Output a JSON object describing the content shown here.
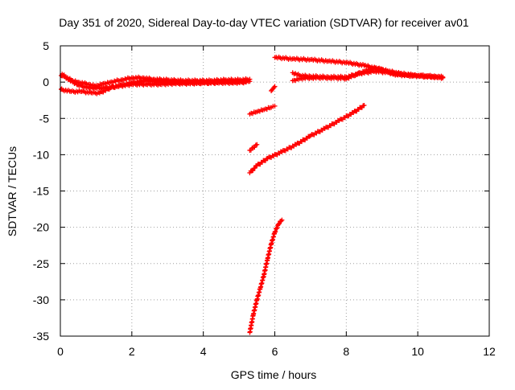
{
  "chart_data": {
    "type": "scatter",
    "title": "Day 351 of 2020, Sidereal Day-to-day VTEC variation (SDTVAR) for receiver av01",
    "xlabel": "GPS time / hours",
    "ylabel": "SDTVAR / TECUs",
    "xlim": [
      0,
      12
    ],
    "ylim": [
      -35,
      5
    ],
    "xticks": [
      0,
      2,
      4,
      6,
      8,
      10,
      12
    ],
    "yticks": [
      5,
      0,
      -5,
      -10,
      -15,
      -20,
      -25,
      -30,
      -35
    ],
    "grid": true,
    "legend": "none",
    "marker": "plus",
    "color": "#ff0000",
    "segments": [
      {
        "points": [
          [
            0.0,
            0.9
          ],
          [
            0.1,
            0.8
          ],
          [
            0.3,
            0.3
          ],
          [
            0.5,
            0.0
          ],
          [
            0.8,
            -0.3
          ],
          [
            1.0,
            -0.5
          ],
          [
            1.2,
            -0.2
          ],
          [
            1.4,
            0.0
          ],
          [
            1.7,
            0.3
          ],
          [
            2.0,
            0.6
          ],
          [
            2.3,
            0.6
          ],
          [
            2.6,
            0.4
          ],
          [
            3.0,
            0.3
          ],
          [
            3.4,
            0.2
          ],
          [
            3.8,
            0.2
          ],
          [
            4.2,
            0.2
          ],
          [
            4.6,
            0.3
          ],
          [
            5.0,
            0.3
          ],
          [
            5.3,
            0.4
          ]
        ]
      },
      {
        "points": [
          [
            0.0,
            -1.0
          ],
          [
            0.3,
            -1.3
          ],
          [
            0.6,
            -1.3
          ],
          [
            0.9,
            -1.5
          ],
          [
            1.1,
            -1.5
          ],
          [
            1.4,
            -0.8
          ],
          [
            1.7,
            -0.4
          ],
          [
            2.0,
            -0.1
          ],
          [
            2.4,
            0.2
          ],
          [
            2.8,
            0.0
          ],
          [
            3.2,
            -0.1
          ],
          [
            3.6,
            -0.1
          ],
          [
            4.0,
            -0.1
          ],
          [
            4.5,
            0.0
          ],
          [
            5.0,
            0.0
          ],
          [
            5.3,
            0.1
          ]
        ]
      },
      {
        "points": [
          [
            0.05,
            1.1
          ],
          [
            0.25,
            0.3
          ],
          [
            0.5,
            -0.4
          ],
          [
            0.8,
            -0.8
          ],
          [
            1.2,
            -0.8
          ],
          [
            1.6,
            -0.6
          ],
          [
            2.0,
            -0.3
          ],
          [
            2.4,
            -0.3
          ],
          [
            2.8,
            -0.3
          ],
          [
            3.2,
            -0.2
          ],
          [
            3.6,
            -0.2
          ],
          [
            4.0,
            -0.1
          ],
          [
            4.4,
            -0.1
          ],
          [
            4.8,
            -0.1
          ],
          [
            5.2,
            0.0
          ]
        ]
      },
      {
        "points": [
          [
            5.3,
            -4.4
          ],
          [
            5.5,
            -4.1
          ],
          [
            5.7,
            -3.8
          ],
          [
            5.9,
            -3.5
          ],
          [
            6.0,
            -3.3
          ]
        ]
      },
      {
        "points": [
          [
            5.3,
            -9.4
          ],
          [
            5.4,
            -9.0
          ],
          [
            5.5,
            -8.6
          ]
        ]
      },
      {
        "points": [
          [
            5.9,
            -1.2
          ],
          [
            5.95,
            -0.9
          ],
          [
            6.0,
            -0.6
          ]
        ]
      },
      {
        "points": [
          [
            5.3,
            -12.5
          ],
          [
            5.5,
            -11.5
          ],
          [
            5.8,
            -10.5
          ],
          [
            6.2,
            -9.6
          ],
          [
            6.6,
            -8.6
          ],
          [
            7.0,
            -7.4
          ],
          [
            7.4,
            -6.4
          ],
          [
            7.8,
            -5.3
          ],
          [
            8.2,
            -4.2
          ],
          [
            8.5,
            -3.2
          ]
        ]
      },
      {
        "points": [
          [
            5.3,
            -34.5
          ],
          [
            5.4,
            -32.0
          ],
          [
            5.5,
            -30.0
          ],
          [
            5.6,
            -28.3
          ],
          [
            5.7,
            -26.5
          ],
          [
            5.8,
            -24.3
          ],
          [
            5.9,
            -22.3
          ],
          [
            6.0,
            -20.7
          ],
          [
            6.1,
            -19.6
          ],
          [
            6.2,
            -19.0
          ]
        ]
      },
      {
        "points": [
          [
            6.0,
            3.4
          ],
          [
            6.5,
            3.2
          ],
          [
            7.0,
            3.1
          ],
          [
            7.5,
            2.9
          ],
          [
            8.0,
            2.7
          ],
          [
            8.5,
            2.3
          ],
          [
            9.0,
            1.7
          ],
          [
            9.5,
            1.2
          ],
          [
            10.0,
            0.9
          ],
          [
            10.5,
            0.7
          ],
          [
            10.7,
            0.6
          ]
        ]
      },
      {
        "points": [
          [
            6.5,
            1.3
          ],
          [
            6.7,
            0.9
          ],
          [
            7.0,
            0.8
          ],
          [
            7.5,
            0.7
          ],
          [
            8.0,
            0.7
          ],
          [
            8.4,
            1.2
          ],
          [
            8.8,
            1.5
          ],
          [
            9.2,
            1.3
          ],
          [
            9.6,
            1.0
          ],
          [
            10.0,
            0.9
          ],
          [
            10.5,
            0.8
          ],
          [
            10.7,
            0.7
          ]
        ]
      },
      {
        "points": [
          [
            6.5,
            0.2
          ],
          [
            6.7,
            0.5
          ],
          [
            7.0,
            0.6
          ],
          [
            7.5,
            0.6
          ],
          [
            8.0,
            0.5
          ],
          [
            8.5,
            1.5
          ],
          [
            8.8,
            2.0
          ],
          [
            9.0,
            1.8
          ],
          [
            9.3,
            1.1
          ],
          [
            9.7,
            0.9
          ],
          [
            10.2,
            0.8
          ],
          [
            10.7,
            0.6
          ]
        ]
      }
    ]
  }
}
